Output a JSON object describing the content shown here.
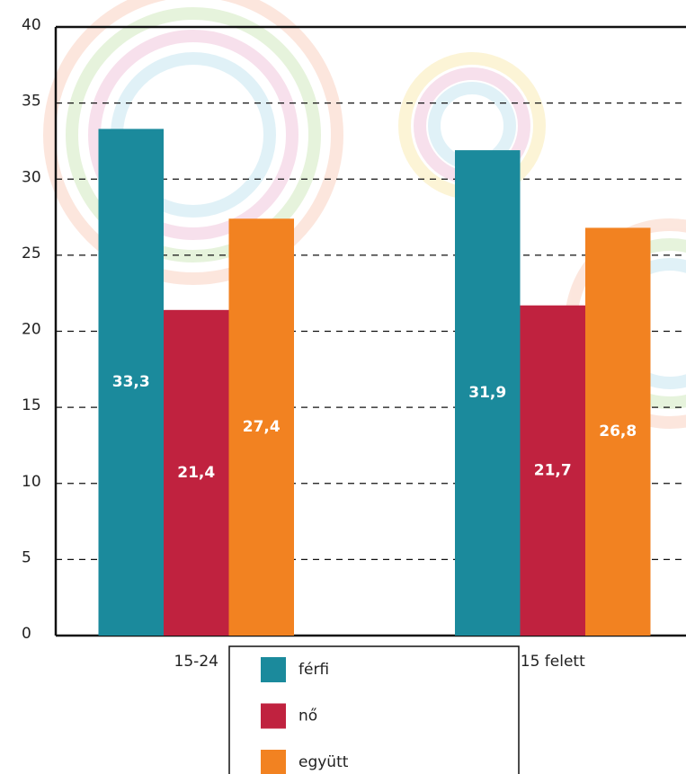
{
  "chart_data": {
    "type": "bar",
    "categories": [
      "15-24",
      "15 felett"
    ],
    "series": [
      {
        "name": "férfi",
        "color": "#1b8a9c",
        "values": [
          33.3,
          31.9
        ],
        "value_labels": [
          "33,3",
          "31,9"
        ]
      },
      {
        "name": "nő",
        "color": "#c0223f",
        "values": [
          21.4,
          21.7
        ],
        "value_labels": [
          "21,4",
          "21,7"
        ]
      },
      {
        "name": "együtt",
        "color": "#f28221",
        "values": [
          27.4,
          26.8
        ],
        "value_labels": [
          "27,4",
          "26,8"
        ]
      }
    ],
    "ylim": [
      0,
      40
    ],
    "yticks": [
      0,
      5,
      10,
      15,
      20,
      25,
      30,
      35,
      40
    ],
    "grid": true
  }
}
